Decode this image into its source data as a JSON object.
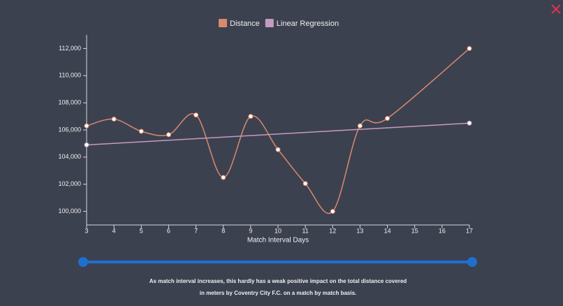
{
  "chart_data": {
    "type": "line",
    "xlabel": "Match Interval Days",
    "xlim": [
      3,
      17
    ],
    "xticks": [
      3,
      4,
      5,
      6,
      7,
      8,
      9,
      10,
      11,
      12,
      13,
      14,
      15,
      16,
      17
    ],
    "ylim": [
      99000,
      113000
    ],
    "yticks": [
      {
        "value": 100000,
        "label": "100,000"
      },
      {
        "value": 102000,
        "label": "102,000"
      },
      {
        "value": 104000,
        "label": "104,000"
      },
      {
        "value": 106000,
        "label": "106,000"
      },
      {
        "value": 108000,
        "label": "108,000"
      },
      {
        "value": 110000,
        "label": "110,000"
      },
      {
        "value": 112000,
        "label": "112,000"
      }
    ],
    "series": [
      {
        "name": "Distance",
        "color": "#d98a6c",
        "x": [
          3,
          4,
          5,
          6,
          7,
          8,
          9,
          10,
          11,
          12,
          13,
          14,
          17
        ],
        "values": [
          106300,
          106800,
          105900,
          105650,
          107100,
          102500,
          107000,
          104550,
          102050,
          100000,
          106300,
          106850,
          112000
        ]
      },
      {
        "name": "Linear Regression",
        "color": "#c59bc0",
        "x": [
          3,
          17
        ],
        "values": [
          104900,
          106500
        ]
      }
    ]
  },
  "caption": [
    "As match interval increases, this hardly has a weak positive impact on the total distance covered",
    "in meters by Coventry City F.C. on a match by match basis."
  ]
}
